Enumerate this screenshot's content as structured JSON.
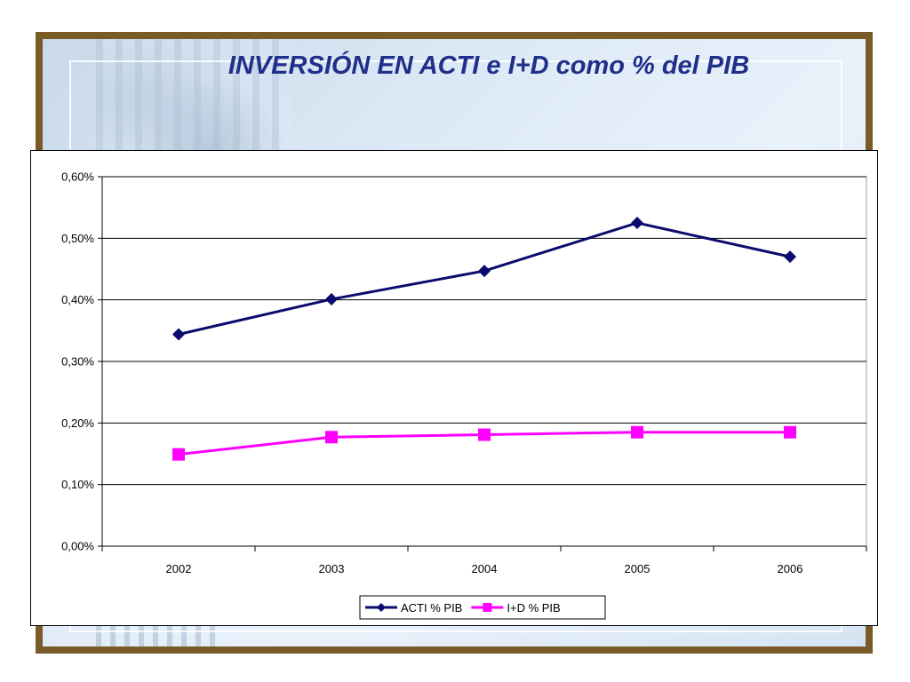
{
  "slide": {
    "title": "INVERSIÓN EN ACTI e I+D como % del PIB"
  },
  "chart_data": {
    "type": "line",
    "title": "",
    "xlabel": "",
    "ylabel": "",
    "categories": [
      "2002",
      "2003",
      "2004",
      "2005",
      "2006"
    ],
    "ylim": [
      0,
      0.6
    ],
    "yticks": [
      0,
      0.1,
      0.2,
      0.3,
      0.4,
      0.5,
      0.6
    ],
    "ytick_labels": [
      "0,00%",
      "0,10%",
      "0,20%",
      "0,30%",
      "0,40%",
      "0,50%",
      "0,60%"
    ],
    "grid": true,
    "legend_position": "bottom",
    "series": [
      {
        "name": "ACTI % PIB",
        "values": [
          0.344,
          0.401,
          0.447,
          0.525,
          0.47
        ],
        "color": "#0b0b6e",
        "marker": "diamond"
      },
      {
        "name": "I+D % PIB",
        "values": [
          0.149,
          0.177,
          0.181,
          0.185,
          0.185
        ],
        "color": "#ff00ff",
        "marker": "square"
      }
    ]
  }
}
